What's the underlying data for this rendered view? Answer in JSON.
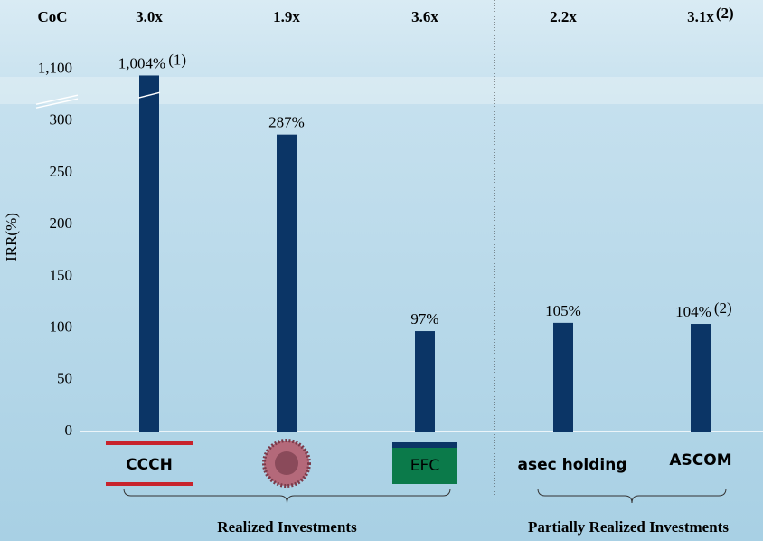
{
  "chart_data": {
    "type": "bar",
    "y_label": "IRR(%)",
    "categories": [
      "CCCH",
      null,
      "EFC",
      "asec holding",
      "ASCOM"
    ],
    "values": [
      1004,
      287,
      97,
      105,
      104
    ],
    "value_labels": [
      "1,004%",
      "287%",
      "97%",
      "105%",
      "104%"
    ],
    "value_notes": [
      "(1)",
      null,
      null,
      null,
      "(2)"
    ],
    "color": "#0b3566",
    "ylim": [
      0,
      1100
    ],
    "yticks": [
      0,
      50,
      100,
      150,
      200,
      250,
      300,
      {
        "value": 1100,
        "label": "1,100"
      }
    ],
    "broken_axis": true,
    "coc": {
      "label": "CoC",
      "value_labels": [
        "3.0x",
        "1.9x",
        "3.6x",
        "2.2x",
        "3.1x"
      ],
      "notes": [
        null,
        null,
        null,
        null,
        "(2)"
      ]
    },
    "groups": [
      {
        "name": "Realized Investments",
        "categories": [
          0,
          2
        ]
      },
      {
        "name": "Partially Realized Investments",
        "categories": [
          3,
          4
        ]
      }
    ]
  }
}
